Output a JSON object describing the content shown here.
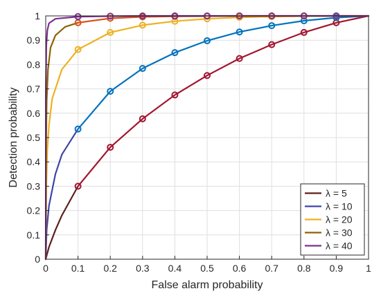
{
  "chart_data": {
    "type": "line",
    "title": "",
    "xlabel": "False alarm probability",
    "ylabel": "Detection probability",
    "xlim": [
      0,
      1
    ],
    "ylim": [
      0,
      1
    ],
    "xticks": [
      0,
      0.1,
      0.2,
      0.3,
      0.4,
      0.5,
      0.6,
      0.7,
      0.8,
      0.9,
      1
    ],
    "yticks": [
      0,
      0.1,
      0.2,
      0.3,
      0.4,
      0.5,
      0.6,
      0.7,
      0.8,
      0.9,
      1
    ],
    "xtick_labels": [
      "0",
      "0.1",
      "0.2",
      "0.3",
      "0.4",
      "0.5",
      "0.6",
      "0.7",
      "0.8",
      "0.9",
      "1"
    ],
    "ytick_labels": [
      "0",
      "0.1",
      "0.2",
      "0.3",
      "0.4",
      "0.5",
      "0.6",
      "0.7",
      "0.8",
      "0.9",
      "1"
    ],
    "grid": true,
    "legend_position": "bottom-right",
    "marker_x": [
      0.1,
      0.2,
      0.3,
      0.4,
      0.5,
      0.6,
      0.7,
      0.8,
      0.9
    ],
    "series": [
      {
        "name": "λ = 5",
        "line_color": "#5c1f1c",
        "color": "#a2142f",
        "points": [
          [
            0,
            0
          ],
          [
            0.01,
            0.05
          ],
          [
            0.03,
            0.12
          ],
          [
            0.05,
            0.18
          ],
          [
            0.1,
            0.3
          ],
          [
            0.2,
            0.46
          ],
          [
            0.3,
            0.577
          ],
          [
            0.4,
            0.675
          ],
          [
            0.5,
            0.755
          ],
          [
            0.6,
            0.825
          ],
          [
            0.7,
            0.882
          ],
          [
            0.8,
            0.932
          ],
          [
            0.9,
            0.972
          ],
          [
            1,
            1
          ]
        ]
      },
      {
        "name": "λ = 10",
        "line_color": "#3f44a8",
        "color": "#0072bd",
        "points": [
          [
            0,
            0
          ],
          [
            0.003,
            0.12
          ],
          [
            0.01,
            0.22
          ],
          [
            0.03,
            0.35
          ],
          [
            0.05,
            0.43
          ],
          [
            0.1,
            0.535
          ],
          [
            0.2,
            0.69
          ],
          [
            0.3,
            0.784
          ],
          [
            0.4,
            0.849
          ],
          [
            0.5,
            0.898
          ],
          [
            0.6,
            0.934
          ],
          [
            0.7,
            0.96
          ],
          [
            0.8,
            0.98
          ],
          [
            0.9,
            0.993
          ],
          [
            1,
            1
          ]
        ]
      },
      {
        "name": "λ = 20",
        "line_color": "#edb120",
        "color": "#edb120",
        "points": [
          [
            0,
            0
          ],
          [
            0.002,
            0.3
          ],
          [
            0.005,
            0.45
          ],
          [
            0.01,
            0.55
          ],
          [
            0.02,
            0.66
          ],
          [
            0.05,
            0.78
          ],
          [
            0.1,
            0.862
          ],
          [
            0.2,
            0.932
          ],
          [
            0.3,
            0.962
          ],
          [
            0.4,
            0.978
          ],
          [
            0.5,
            0.988
          ],
          [
            0.6,
            0.994
          ],
          [
            0.7,
            0.997
          ],
          [
            0.8,
            0.999
          ],
          [
            0.9,
            1
          ],
          [
            1,
            1
          ]
        ]
      },
      {
        "name": "λ = 30",
        "line_color": "#8c6200",
        "color": "#d95319",
        "points": [
          [
            0,
            0
          ],
          [
            0.001,
            0.45
          ],
          [
            0.003,
            0.65
          ],
          [
            0.007,
            0.78
          ],
          [
            0.015,
            0.87
          ],
          [
            0.03,
            0.92
          ],
          [
            0.06,
            0.955
          ],
          [
            0.1,
            0.972
          ],
          [
            0.2,
            0.99
          ],
          [
            0.3,
            0.996
          ],
          [
            0.4,
            0.998
          ],
          [
            0.5,
            0.999
          ],
          [
            0.6,
            1
          ],
          [
            0.7,
            1
          ],
          [
            0.8,
            1
          ],
          [
            0.9,
            1
          ],
          [
            1,
            1
          ]
        ]
      },
      {
        "name": "λ = 40",
        "line_color": "#7e2f8e",
        "color": "#7e2f8e",
        "points": [
          [
            0,
            0
          ],
          [
            0.0005,
            0.7
          ],
          [
            0.002,
            0.88
          ],
          [
            0.005,
            0.94
          ],
          [
            0.01,
            0.97
          ],
          [
            0.03,
            0.988
          ],
          [
            0.1,
            0.997
          ],
          [
            0.2,
            0.999
          ],
          [
            0.3,
            1
          ],
          [
            0.4,
            1
          ],
          [
            0.5,
            1
          ],
          [
            0.6,
            1
          ],
          [
            0.7,
            1
          ],
          [
            0.8,
            1
          ],
          [
            0.9,
            1
          ],
          [
            1,
            1
          ]
        ]
      }
    ]
  }
}
